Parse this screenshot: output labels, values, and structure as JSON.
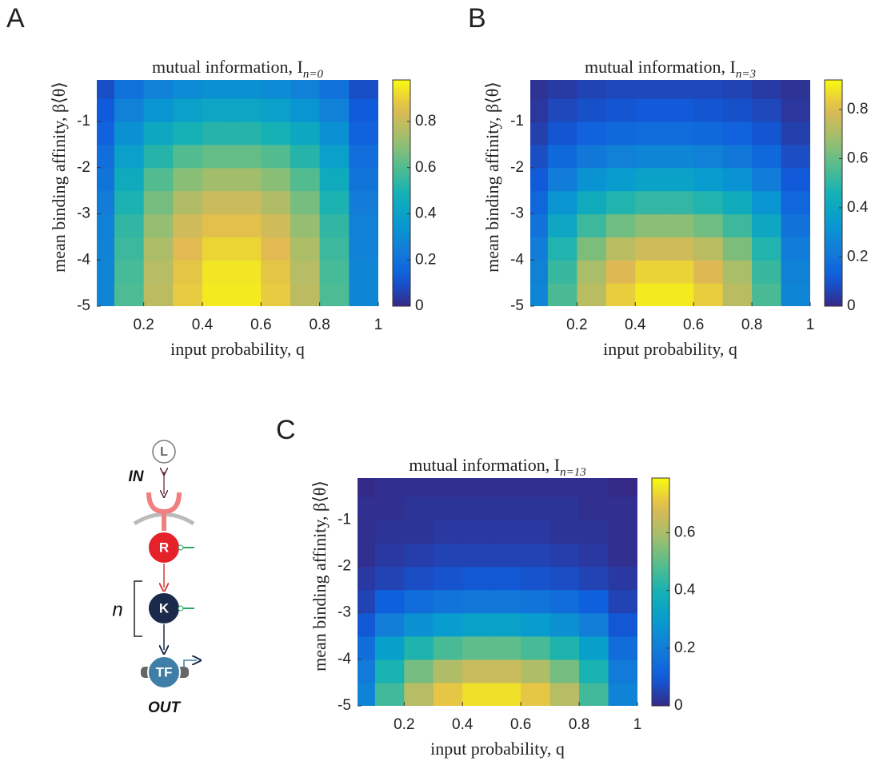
{
  "chart_data": [
    {
      "type": "heatmap",
      "panel": "A",
      "title": "mutual information, I",
      "title_subscript": "n=0",
      "x_label": "input probability, q",
      "y_label": "mean binding affinity, β⟨θ⟩",
      "colormap": "parula",
      "x": [
        0.05,
        0.15,
        0.25,
        0.35,
        0.45,
        0.55,
        0.65,
        0.75,
        0.85,
        0.95
      ],
      "y": [
        -4.75,
        -4.25,
        -3.75,
        -3.25,
        -2.75,
        -2.25,
        -1.75,
        -1.25,
        -0.75,
        -0.25
      ],
      "z": [
        [
          0.28,
          0.59,
          0.78,
          0.89,
          0.95,
          0.95,
          0.89,
          0.78,
          0.59,
          0.28
        ],
        [
          0.28,
          0.58,
          0.77,
          0.88,
          0.94,
          0.94,
          0.88,
          0.77,
          0.58,
          0.28
        ],
        [
          0.27,
          0.56,
          0.75,
          0.86,
          0.91,
          0.91,
          0.86,
          0.75,
          0.56,
          0.27
        ],
        [
          0.26,
          0.54,
          0.71,
          0.82,
          0.87,
          0.87,
          0.82,
          0.71,
          0.54,
          0.26
        ],
        [
          0.24,
          0.5,
          0.66,
          0.76,
          0.81,
          0.81,
          0.76,
          0.66,
          0.5,
          0.24
        ],
        [
          0.21,
          0.45,
          0.6,
          0.69,
          0.73,
          0.73,
          0.69,
          0.6,
          0.45,
          0.21
        ],
        [
          0.19,
          0.39,
          0.52,
          0.6,
          0.63,
          0.63,
          0.6,
          0.52,
          0.39,
          0.19
        ],
        [
          0.15,
          0.32,
          0.43,
          0.49,
          0.52,
          0.52,
          0.49,
          0.43,
          0.32,
          0.15
        ],
        [
          0.12,
          0.26,
          0.34,
          0.39,
          0.42,
          0.42,
          0.39,
          0.34,
          0.26,
          0.12
        ],
        [
          0.09,
          0.2,
          0.26,
          0.3,
          0.32,
          0.32,
          0.3,
          0.26,
          0.2,
          0.09
        ]
      ],
      "xlim": [
        0.04,
        1
      ],
      "xticks": [
        0.2,
        0.4,
        0.6,
        0.8,
        1
      ],
      "ylim": [
        -5,
        -0.1
      ],
      "yticks": [
        -5,
        -4,
        -3,
        -2,
        -1
      ],
      "clim": [
        0,
        0.98
      ],
      "cticks": [
        0,
        0.2,
        0.4,
        0.6,
        0.8
      ]
    },
    {
      "type": "heatmap",
      "panel": "B",
      "title": "mutual information, I",
      "title_subscript": "n=3",
      "x_label": "input probability, q",
      "y_label": "mean binding affinity, β⟨θ⟩",
      "colormap": "parula",
      "x": [
        0.05,
        0.15,
        0.25,
        0.35,
        0.45,
        0.55,
        0.65,
        0.75,
        0.85,
        0.95
      ],
      "y": [
        -4.75,
        -4.25,
        -3.75,
        -3.25,
        -2.75,
        -2.25,
        -1.75,
        -1.25,
        -0.75,
        -0.25
      ],
      "z": [
        [
          0.26,
          0.55,
          0.73,
          0.84,
          0.89,
          0.89,
          0.84,
          0.73,
          0.55,
          0.26
        ],
        [
          0.25,
          0.52,
          0.7,
          0.8,
          0.85,
          0.85,
          0.8,
          0.7,
          0.52,
          0.25
        ],
        [
          0.23,
          0.48,
          0.63,
          0.73,
          0.77,
          0.77,
          0.73,
          0.63,
          0.48,
          0.23
        ],
        [
          0.19,
          0.4,
          0.53,
          0.61,
          0.65,
          0.65,
          0.61,
          0.53,
          0.4,
          0.19
        ],
        [
          0.15,
          0.32,
          0.42,
          0.48,
          0.51,
          0.51,
          0.48,
          0.42,
          0.32,
          0.15
        ],
        [
          0.11,
          0.23,
          0.31,
          0.35,
          0.38,
          0.38,
          0.35,
          0.31,
          0.23,
          0.11
        ],
        [
          0.08,
          0.16,
          0.21,
          0.24,
          0.26,
          0.26,
          0.24,
          0.21,
          0.16,
          0.08
        ],
        [
          0.05,
          0.1,
          0.14,
          0.16,
          0.17,
          0.17,
          0.16,
          0.14,
          0.1,
          0.05
        ],
        [
          0.03,
          0.07,
          0.09,
          0.1,
          0.11,
          0.11,
          0.1,
          0.09,
          0.07,
          0.03
        ],
        [
          0.02,
          0.04,
          0.06,
          0.07,
          0.07,
          0.07,
          0.07,
          0.06,
          0.04,
          0.02
        ]
      ],
      "xlim": [
        0.04,
        1
      ],
      "xticks": [
        0.2,
        0.4,
        0.6,
        0.8,
        1
      ],
      "ylim": [
        -5,
        -0.1
      ],
      "yticks": [
        -5,
        -4,
        -3,
        -2,
        -1
      ],
      "clim": [
        0,
        0.92
      ],
      "cticks": [
        0,
        0.2,
        0.4,
        0.6,
        0.8
      ]
    },
    {
      "type": "heatmap",
      "panel": "C",
      "title": "mutual information, I",
      "title_subscript": "n=13",
      "x_label": "input probability, q",
      "y_label": "mean binding affinity, β⟨θ⟩",
      "colormap": "parula",
      "x": [
        0.05,
        0.15,
        0.25,
        0.35,
        0.45,
        0.55,
        0.65,
        0.75,
        0.85,
        0.95
      ],
      "y": [
        -4.75,
        -4.25,
        -3.75,
        -3.25,
        -2.75,
        -2.25,
        -1.75,
        -1.25,
        -0.75,
        -0.25
      ],
      "z": [
        [
          0.22,
          0.46,
          0.62,
          0.71,
          0.75,
          0.75,
          0.71,
          0.62,
          0.46,
          0.22
        ],
        [
          0.19,
          0.4,
          0.53,
          0.61,
          0.65,
          0.65,
          0.61,
          0.53,
          0.4,
          0.19
        ],
        [
          0.15,
          0.31,
          0.41,
          0.47,
          0.5,
          0.5,
          0.47,
          0.41,
          0.31,
          0.15
        ],
        [
          0.09,
          0.2,
          0.26,
          0.3,
          0.32,
          0.32,
          0.3,
          0.26,
          0.2,
          0.09
        ],
        [
          0.05,
          0.11,
          0.15,
          0.17,
          0.18,
          0.18,
          0.17,
          0.15,
          0.11,
          0.05
        ],
        [
          0.03,
          0.05,
          0.07,
          0.08,
          0.09,
          0.09,
          0.08,
          0.07,
          0.05,
          0.03
        ],
        [
          0.01,
          0.03,
          0.04,
          0.05,
          0.05,
          0.05,
          0.05,
          0.04,
          0.03,
          0.01
        ],
        [
          0.01,
          0.02,
          0.02,
          0.03,
          0.03,
          0.03,
          0.03,
          0.02,
          0.02,
          0.01
        ],
        [
          0.01,
          0.01,
          0.02,
          0.02,
          0.02,
          0.02,
          0.02,
          0.02,
          0.01,
          0.01
        ],
        [
          0,
          0.01,
          0.01,
          0.01,
          0.01,
          0.01,
          0.01,
          0.01,
          0.01,
          0
        ]
      ],
      "xlim": [
        0.04,
        1
      ],
      "xticks": [
        0.2,
        0.4,
        0.6,
        0.8,
        1
      ],
      "ylim": [
        -5,
        -0.1
      ],
      "yticks": [
        -5,
        -4,
        -3,
        -2,
        -1
      ],
      "clim": [
        0,
        0.79
      ],
      "cticks": [
        0,
        0.2,
        0.4,
        0.6
      ]
    }
  ],
  "diagram": {
    "ligand": "L",
    "input": "IN",
    "receptor": "R",
    "kinase": "K",
    "repeat": "n",
    "factor": "TF",
    "output": "OUT"
  }
}
